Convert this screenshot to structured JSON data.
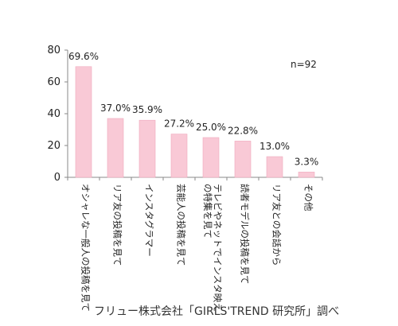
{
  "chart_data": {
    "type": "bar",
    "categories": [
      "オシャレな一般人の投稿を見て",
      "リア友の投稿を見て",
      "インスタグラマー",
      "芸能人の投稿を見て",
      "テレビやネットでインスタ映えの特集を見て",
      "読者モデルの投稿を見て",
      "リア友との会話から",
      "その他"
    ],
    "category_lines": [
      [
        "オシャレな一般人の投稿を見て"
      ],
      [
        "リア友の投稿を見て"
      ],
      [
        "インスタグラマー"
      ],
      [
        "芸能人の投稿を見て"
      ],
      [
        "テレビやネットでインスタ映え",
        "の特集を見て"
      ],
      [
        "読者モデルの投稿を見て"
      ],
      [
        "リア友との会話から"
      ],
      [
        "その他"
      ]
    ],
    "values": [
      69.6,
      37.0,
      35.9,
      27.2,
      25.0,
      22.8,
      13.0,
      3.3
    ],
    "value_labels": [
      "69.6%",
      "37.0%",
      "35.9%",
      "27.2%",
      "25.0%",
      "22.8%",
      "13.0%",
      "3.3%"
    ],
    "ylim": [
      0,
      80
    ],
    "yticks": [
      0,
      20,
      40,
      60,
      80
    ],
    "bar_color": "#f9c9d6",
    "bar_stroke": "#f0a9bd",
    "axis_color": "#888888",
    "grid": false,
    "annotation": "n=92"
  },
  "source": "フリュー株式会社「GIRLS'TREND 研究所」調べ"
}
